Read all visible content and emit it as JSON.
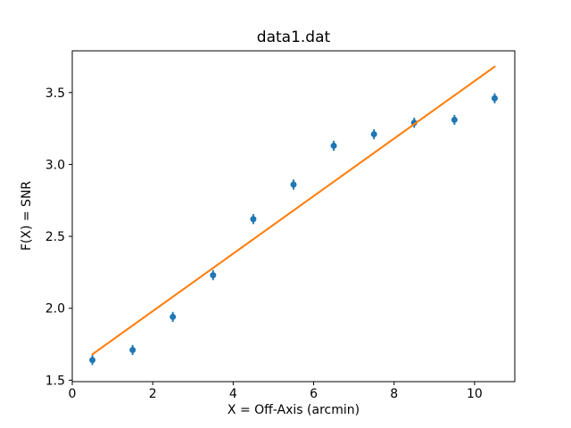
{
  "figure": {
    "background": "#ffffff"
  },
  "chart_data": {
    "type": "scatter",
    "title": "data1.dat",
    "xlabel": "X = Off-Axis (arcmin)",
    "ylabel": "F(X) = SNR",
    "xlim": [
      0,
      11
    ],
    "ylim": [
      1.49,
      3.79
    ],
    "xticks": [
      0,
      2,
      4,
      6,
      8,
      10
    ],
    "yticks": [
      1.5,
      2.0,
      2.5,
      3.0,
      3.5
    ],
    "grid": false,
    "legend": "none",
    "colors": {
      "points": "#1f77b4",
      "fit_line": "#ff7f0e",
      "spines": "#000000"
    },
    "series": [
      {
        "name": "data-points",
        "type": "scatter-errorbar",
        "color": "#1f77b4",
        "x": [
          0.5,
          1.5,
          2.5,
          3.5,
          4.5,
          5.5,
          6.5,
          7.5,
          8.5,
          9.5,
          10.5
        ],
        "y": [
          1.64,
          1.71,
          1.94,
          2.23,
          2.62,
          2.86,
          3.13,
          3.21,
          3.29,
          3.31,
          3.46
        ],
        "yerr": 0.035
      },
      {
        "name": "linear-fit",
        "type": "line",
        "color": "#ff7f0e",
        "x": [
          0.5,
          10.5
        ],
        "y": [
          1.68,
          3.68
        ]
      }
    ]
  }
}
